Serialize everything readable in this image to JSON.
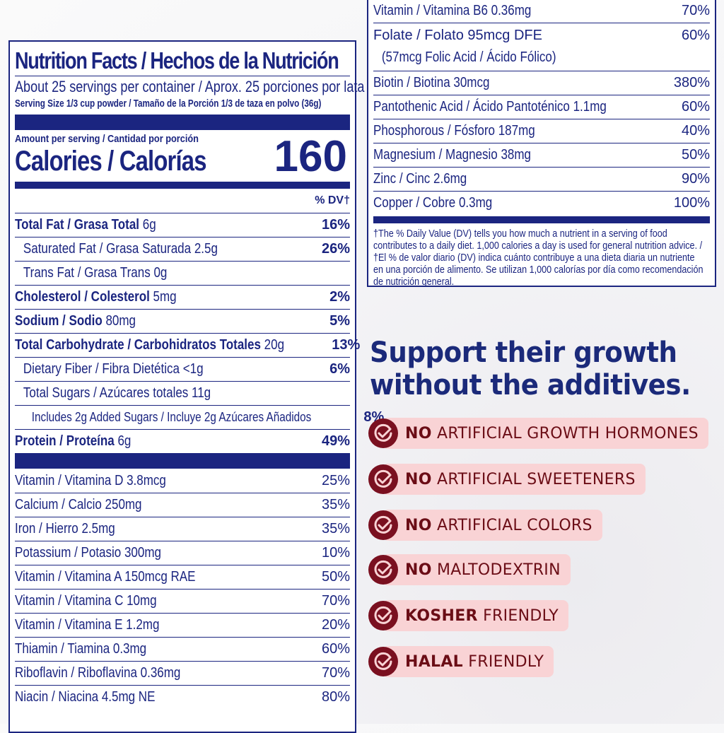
{
  "label": {
    "title": "Nutrition Facts / Hechos de la Nutrición",
    "servings": "About 25 servings per container / Aprox. 25 porciones por lata",
    "serving_size": "Serving Size 1/3 cup powder / Tamaño de la Porción 1/3 de taza en polvo (36g)",
    "amount_per_serving": "Amount per serving / Cantidad por porción",
    "calories_label": "Calories / Calorías",
    "calories_value": "160",
    "dv_header": "% DV†",
    "nutrients": [
      {
        "name": "Total Fat / Grasa Total",
        "amount": "6g",
        "dv": "16%",
        "bold": true,
        "indent": 0
      },
      {
        "name": "Saturated Fat / Grasa Saturada",
        "amount": "2.5g",
        "dv": "26%",
        "bold": false,
        "indent": 1
      },
      {
        "name": "Trans Fat / Grasa Trans",
        "amount": "0g",
        "dv": "",
        "bold": false,
        "indent": 1
      },
      {
        "name": "Cholesterol / Colesterol",
        "amount": "5mg",
        "dv": "2%",
        "bold": true,
        "indent": 0
      },
      {
        "name": "Sodium / Sodio",
        "amount": "80mg",
        "dv": "5%",
        "bold": true,
        "indent": 0
      },
      {
        "name": "Total Carbohydrate / Carbohidratos Totales",
        "amount": "20g",
        "dv": "13%",
        "bold": true,
        "indent": 0
      },
      {
        "name": "Dietary Fiber / Fibra Dietética",
        "amount": "<1g",
        "dv": "6%",
        "bold": false,
        "indent": 1
      },
      {
        "name": "Total Sugars / Azúcares totales",
        "amount": "11g",
        "dv": "",
        "bold": false,
        "indent": 1
      },
      {
        "name": "Includes 2g Added Sugars / Incluye 2g Azúcares Añadidos",
        "amount": "",
        "dv": "8%",
        "bold": false,
        "indent": 2
      },
      {
        "name": "Protein / Proteína",
        "amount": "6g",
        "dv": "49%",
        "bold": true,
        "indent": 0
      }
    ],
    "vitamins_left": [
      {
        "name": "Vitamin / Vitamina D 3.8mcg",
        "dv": "25%"
      },
      {
        "name": "Calcium / Calcio 250mg",
        "dv": "35%"
      },
      {
        "name": "Iron / Hierro 2.5mg",
        "dv": "35%"
      },
      {
        "name": "Potassium / Potasio 300mg",
        "dv": "10%"
      },
      {
        "name": "Vitamin / Vitamina A 150mcg RAE",
        "dv": "50%"
      },
      {
        "name": "Vitamin / Vitamina C 10mg",
        "dv": "70%"
      },
      {
        "name": "Vitamin / Vitamina E 1.2mg",
        "dv": "20%"
      },
      {
        "name": "Thiamin / Tiamina 0.3mg",
        "dv": "60%"
      },
      {
        "name": "Riboflavin / Riboflavina 0.36mg",
        "dv": "70%"
      },
      {
        "name": "Niacin / Niacina 4.5mg NE",
        "dv": "80%"
      }
    ],
    "vitamins_right": [
      {
        "name": "Vitamin / Vitamina B6 0.36mg",
        "dv": "70%"
      },
      {
        "name": "Folate / Folato 95mcg DFE",
        "sub": "(57mcg Folic Acid / Ácido Fólico)",
        "dv": "60%"
      },
      {
        "name": "Biotin / Biotina 30mcg",
        "dv": "380%"
      },
      {
        "name": "Pantothenic Acid / Ácido Pantoténico 1.1mg",
        "dv": "60%"
      },
      {
        "name": "Phosphorous / Fósforo 187mg",
        "dv": "40%"
      },
      {
        "name": "Magnesium / Magnesio 38mg",
        "dv": "50%"
      },
      {
        "name": "Zinc / Cinc 2.6mg",
        "dv": "90%"
      },
      {
        "name": "Copper / Cobre 0.3mg",
        "dv": "100%"
      }
    ],
    "footnote": "†The % Daily Value (DV) tells you how much a nutrient in a serving of food contributes to a daily diet. 1,000 calories a day is used for general nutrition advice. / †El % de valor diario (DV) indica cuánto contribuye a una dieta diaria un nutriente en una porción de alimento. Se utilizan 1,000 calorías por día como recomendación de nutrición general."
  },
  "headline": {
    "line1": "Support their growth",
    "line2": "without the additives."
  },
  "badges": [
    {
      "bold": "NO",
      "text": " ARTIFICIAL GROWTH HORMONES",
      "icon": "check-circle-icon"
    },
    {
      "bold": "NO",
      "text": " ARTIFICIAL SWEETENERS",
      "icon": "check-circle-icon"
    },
    {
      "bold": "NO",
      "text": " ARTIFICIAL COLORS",
      "icon": "check-circle-icon"
    },
    {
      "bold": "NO",
      "text": " MALTODEXTRIN",
      "icon": "check-circle-icon"
    },
    {
      "bold": "KOSHER",
      "text": " FRIENDLY",
      "icon": "check-circle-icon"
    },
    {
      "bold": "HALAL",
      "text": " FRIENDLY",
      "icon": "check-circle-icon"
    }
  ],
  "colors": {
    "navy": "#1b2580",
    "badge_bg": "#f9d3d5",
    "badge_icon": "#7a1020",
    "badge_text": "#6b0d16"
  }
}
